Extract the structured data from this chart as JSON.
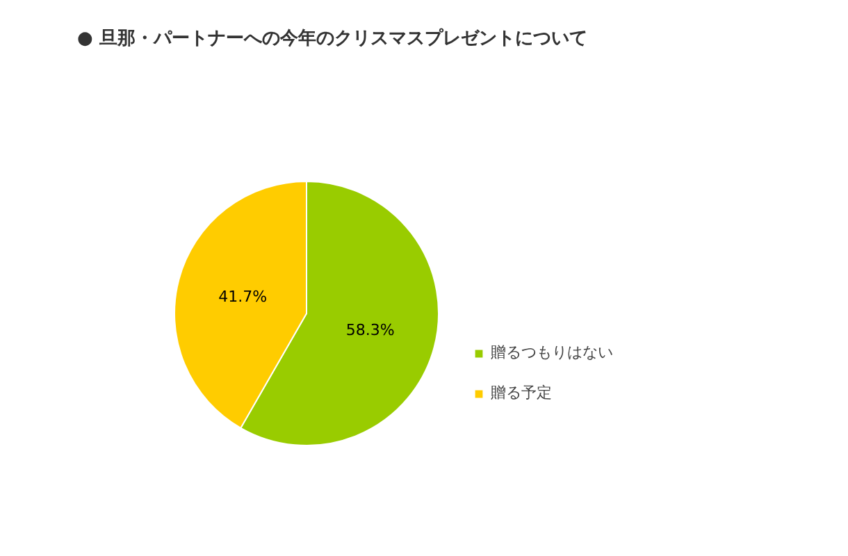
{
  "chart_data": {
    "type": "pie",
    "title": "● 旦那・パートナーへの今年のクリスマスプレゼントについて",
    "categories": [
      "贈るつもりはない",
      "贈る予定"
    ],
    "values": [
      58.3,
      41.7
    ],
    "colors": [
      "#99cc00",
      "#ffcc00"
    ],
    "value_labels": [
      "58.3%",
      "41.7%"
    ],
    "legend": "right"
  }
}
